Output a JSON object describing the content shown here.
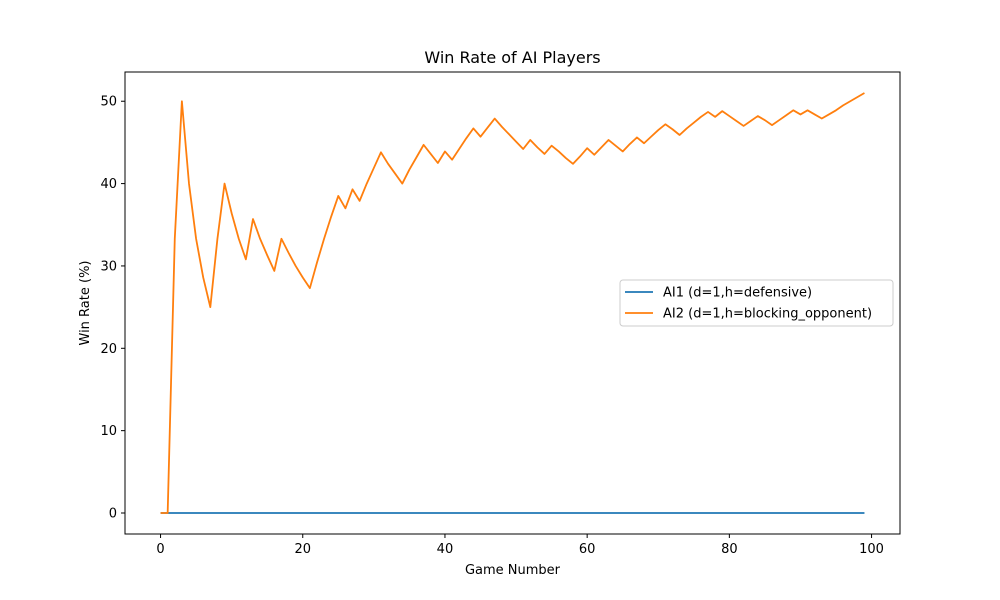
{
  "chart_data": {
    "type": "line",
    "title": "Win Rate of AI Players",
    "xlabel": "Game Number",
    "ylabel": "Win Rate (%)",
    "xlim": [
      -5,
      104
    ],
    "ylim": [
      -2.55,
      53.55
    ],
    "xticks": [
      0,
      20,
      40,
      60,
      80,
      100
    ],
    "yticks": [
      0,
      10,
      20,
      30,
      40,
      50
    ],
    "grid": false,
    "legend_position": "center-right",
    "series": [
      {
        "name": "AI1 (d=1,h=defensive)",
        "color": "#1f77b4",
        "x": [
          0,
          99
        ],
        "y": [
          0,
          0
        ]
      },
      {
        "name": "AI2 (d=1,h=blocking_opponent)",
        "color": "#ff7f0e",
        "x": [
          0,
          1,
          2,
          3,
          4,
          5,
          6,
          7,
          8,
          9,
          10,
          11,
          12,
          13,
          14,
          15,
          16,
          17,
          18,
          19,
          20,
          21,
          22,
          23,
          24,
          25,
          26,
          27,
          28,
          29,
          30,
          31,
          32,
          33,
          34,
          35,
          36,
          37,
          38,
          39,
          40,
          41,
          42,
          43,
          44,
          45,
          46,
          47,
          48,
          49,
          50,
          51,
          52,
          53,
          54,
          55,
          56,
          57,
          58,
          59,
          60,
          61,
          62,
          63,
          64,
          65,
          66,
          67,
          68,
          69,
          70,
          71,
          72,
          73,
          74,
          75,
          76,
          77,
          78,
          79,
          80,
          81,
          82,
          83,
          84,
          85,
          86,
          87,
          88,
          89,
          90,
          91,
          92,
          93,
          94,
          95,
          96,
          97,
          98,
          99
        ],
        "y": [
          0,
          0,
          33.3,
          50,
          40,
          33.3,
          28.6,
          25,
          33.3,
          40,
          36.4,
          33.3,
          30.8,
          35.7,
          33.3,
          31.3,
          29.4,
          33.3,
          31.6,
          30,
          28.6,
          27.3,
          30.4,
          33.3,
          36,
          38.5,
          37,
          39.3,
          37.9,
          40,
          41.9,
          43.8,
          42.4,
          41.2,
          40,
          41.7,
          43.2,
          44.7,
          43.6,
          42.5,
          43.9,
          42.9,
          44.2,
          45.5,
          46.7,
          45.7,
          46.8,
          47.9,
          46.9,
          46,
          45.1,
          44.2,
          45.3,
          44.4,
          43.6,
          44.6,
          43.9,
          43.1,
          42.4,
          43.3,
          44.3,
          43.5,
          44.4,
          45.3,
          44.6,
          43.9,
          44.8,
          45.6,
          44.9,
          45.7,
          46.5,
          47.2,
          46.6,
          45.9,
          46.7,
          47.4,
          48.1,
          48.7,
          48.1,
          48.8,
          48.2,
          47.6,
          47,
          47.6,
          48.2,
          47.7,
          47.1,
          47.7,
          48.3,
          48.9,
          48.4,
          48.9,
          48.4,
          47.9,
          48.4,
          48.9,
          49.5,
          50,
          50.5,
          51
        ]
      }
    ]
  }
}
